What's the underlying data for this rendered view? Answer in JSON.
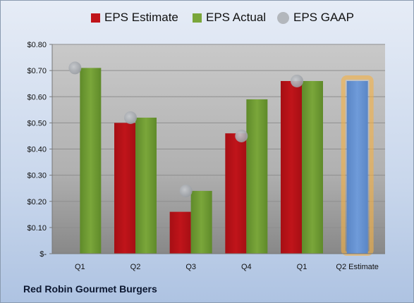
{
  "company": "Red Robin Gourmet Burgers",
  "colors": {
    "estimate": "#c0141a",
    "actual": "#7aa63a",
    "gaap": "#9a9ea4",
    "projection": "#6f9bd9",
    "projection_glow": "#f5b042"
  },
  "chart_data": {
    "type": "bar",
    "title": "",
    "xlabel": "",
    "ylabel": "",
    "ylim": [
      0,
      0.8
    ],
    "yticks": [
      "$-",
      "$0.10",
      "$0.20",
      "$0.30",
      "$0.40",
      "$0.50",
      "$0.60",
      "$0.70",
      "$0.80"
    ],
    "categories": [
      "Q1",
      "Q2",
      "Q3",
      "Q4",
      "Q1",
      "Q2 Estimate"
    ],
    "legend_position": "top",
    "grid": true,
    "series": [
      {
        "name": "EPS Estimate",
        "kind": "bar",
        "values": [
          null,
          0.5,
          0.16,
          0.46,
          0.66,
          0.66
        ]
      },
      {
        "name": "EPS Actual",
        "kind": "bar",
        "values": [
          0.71,
          0.52,
          0.24,
          0.59,
          0.66,
          null
        ]
      },
      {
        "name": "EPS GAAP",
        "kind": "marker",
        "values": [
          0.71,
          0.52,
          0.24,
          0.45,
          0.66,
          null
        ]
      }
    ]
  }
}
